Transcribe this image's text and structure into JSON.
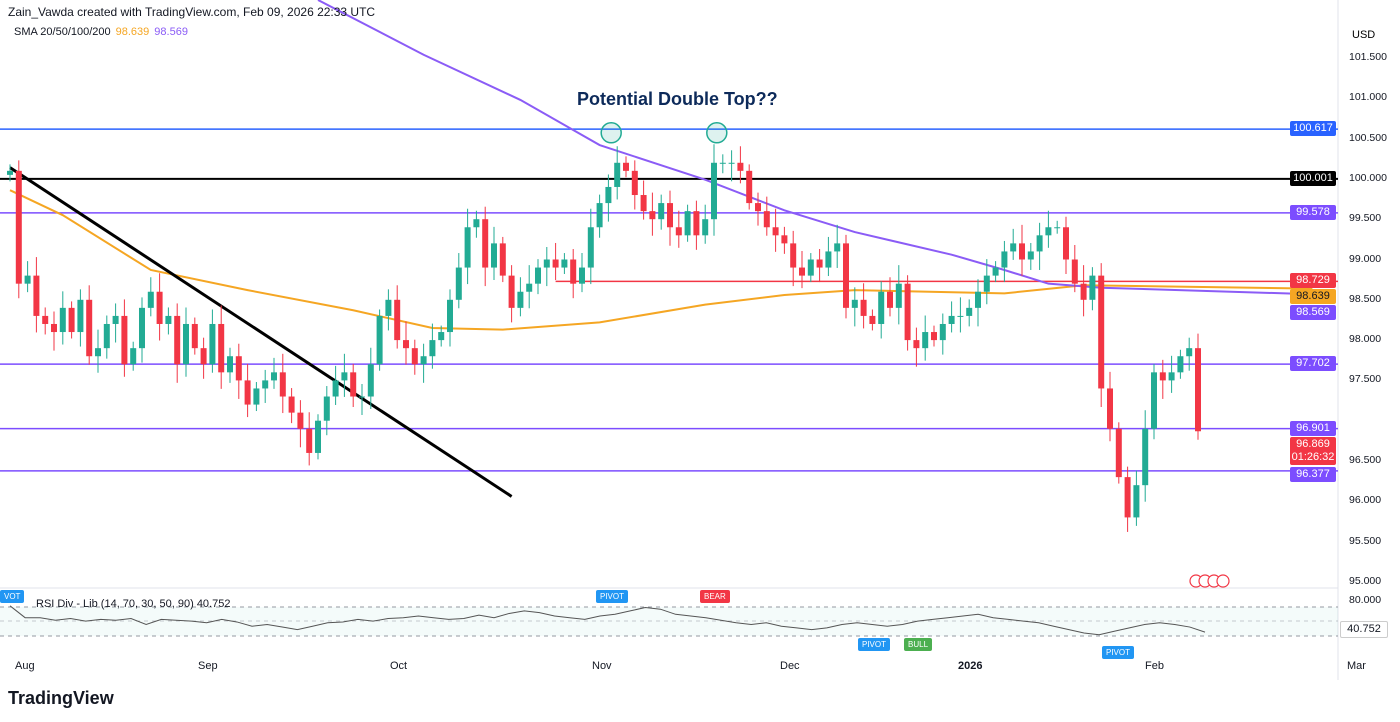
{
  "header": {
    "attribution": "Zain_Vawda created with TradingView.com, Feb 09, 2026 22:33 UTC",
    "indicator": "SMA 20/50/100/200",
    "sma_values": [
      "98.639",
      "98.569"
    ]
  },
  "annotation": "Potential Double Top??",
  "logo": "TradingView",
  "currency": "USD",
  "chart_data": {
    "type": "candlestick",
    "title": "",
    "ylim": [
      95.0,
      101.9
    ],
    "y_ticks": [
      "101.500",
      "101.000",
      "100.500",
      "100.000",
      "99.500",
      "99.000",
      "98.500",
      "98.000",
      "97.500",
      "96.500",
      "96.000",
      "95.500",
      "95.000"
    ],
    "x_ticks": [
      "Aug",
      "Sep",
      "Oct",
      "Nov",
      "Dec",
      "2026",
      "Feb",
      "Mar"
    ],
    "first_open": 100.05,
    "closes": [
      100.1,
      98.7,
      98.8,
      98.3,
      98.2,
      98.1,
      98.4,
      98.1,
      98.5,
      97.8,
      97.9,
      98.2,
      98.3,
      97.7,
      97.9,
      98.4,
      98.6,
      98.2,
      98.3,
      97.7,
      98.2,
      97.9,
      97.7,
      98.2,
      97.6,
      97.8,
      97.5,
      97.2,
      97.4,
      97.5,
      97.6,
      97.3,
      97.1,
      96.9,
      96.6,
      97.0,
      97.3,
      97.5,
      97.6,
      97.3,
      97.3,
      97.7,
      98.3,
      98.5,
      98.0,
      97.9,
      97.7,
      97.8,
      98.0,
      98.1,
      98.5,
      98.9,
      99.4,
      99.5,
      98.9,
      99.2,
      98.8,
      98.4,
      98.6,
      98.7,
      98.9,
      99.0,
      98.9,
      99.0,
      98.7,
      98.9,
      99.4,
      99.7,
      99.9,
      100.2,
      100.1,
      99.8,
      99.6,
      99.5,
      99.7,
      99.4,
      99.3,
      99.6,
      99.3,
      99.5,
      100.2,
      100.2,
      100.2,
      100.1,
      99.7,
      99.6,
      99.4,
      99.3,
      99.2,
      98.9,
      98.8,
      99.0,
      98.9,
      99.1,
      99.2,
      98.4,
      98.5,
      98.3,
      98.2,
      98.6,
      98.4,
      98.7,
      98.0,
      97.9,
      98.1,
      98.0,
      98.2,
      98.3,
      98.3,
      98.4,
      98.6,
      98.8,
      98.9,
      99.1,
      99.2,
      99.0,
      99.1,
      99.3,
      99.4,
      99.4,
      99.0,
      98.7,
      98.5,
      98.8,
      97.4,
      96.9,
      96.3,
      95.8,
      96.2,
      96.9,
      97.6,
      97.5,
      97.6,
      97.8,
      97.9,
      96.869
    ],
    "sma_100": {
      "color": "#f5a623",
      "points": [
        [
          0,
          99.86
        ],
        [
          6,
          99.55
        ],
        [
          16,
          98.87
        ],
        [
          27,
          98.62
        ],
        [
          39,
          98.37
        ],
        [
          48,
          98.15
        ],
        [
          56,
          98.13
        ],
        [
          67,
          98.22
        ],
        [
          79,
          98.44
        ],
        [
          88,
          98.56
        ],
        [
          96,
          98.62
        ],
        [
          113,
          98.58
        ],
        [
          122,
          98.68
        ],
        [
          148,
          98.639
        ]
      ]
    },
    "sma_200": {
      "color": "#8b5cf6",
      "points": [
        [
          35,
          102.22
        ],
        [
          47,
          101.54
        ],
        [
          58,
          100.98
        ],
        [
          67,
          100.42
        ],
        [
          79,
          99.99
        ],
        [
          88,
          99.61
        ],
        [
          96,
          99.34
        ],
        [
          107,
          99.06
        ],
        [
          113,
          98.87
        ],
        [
          118,
          98.7
        ],
        [
          124,
          98.65
        ],
        [
          148,
          98.569
        ]
      ]
    },
    "levels": [
      {
        "value": "100.617",
        "color": "#2962ff"
      },
      {
        "value": "100.001",
        "color": "#000000"
      },
      {
        "value": "99.578",
        "color": "#7c4dff"
      },
      {
        "value": "98.729",
        "color": "#f23645",
        "from": 62
      },
      {
        "value": "98.639",
        "color": "#f5a623",
        "label_only": true
      },
      {
        "value": "98.569",
        "color": "#7c4dff",
        "label_only": true
      },
      {
        "value": "97.702",
        "color": "#7c4dff"
      },
      {
        "value": "96.901",
        "color": "#7c4dff"
      },
      {
        "value": "96.869",
        "color": "#f23645",
        "label_only": true,
        "sub": "01:26:32"
      },
      {
        "value": "96.377",
        "color": "#7c4dff"
      }
    ],
    "trendline": [
      [
        0,
        100.14
      ],
      [
        57,
        96.06
      ]
    ],
    "double_top_markers": [
      69,
      81
    ],
    "up_color": "#22ab94",
    "down_color": "#f23645"
  },
  "rsi": {
    "label": "RSI Div - Lib (14, 70, 30, 50, 90)",
    "value": "40.752",
    "axis": "80.000",
    "values": [
      72,
      58,
      58,
      55,
      57,
      54,
      56,
      55,
      57,
      50,
      56,
      55,
      54,
      52,
      56,
      53,
      48,
      50,
      47,
      44,
      48,
      52,
      53,
      56,
      54,
      57,
      58,
      60,
      58,
      56,
      57,
      61,
      58,
      63,
      66,
      64,
      60,
      58,
      56,
      60,
      62,
      66,
      70,
      68,
      62,
      60,
      58,
      55,
      52,
      50,
      52,
      48,
      46,
      44,
      46,
      50,
      52,
      50,
      48,
      50,
      54,
      56,
      58,
      60,
      62,
      58,
      56,
      54,
      52,
      48,
      44,
      40,
      38,
      42,
      46,
      50,
      52,
      50,
      47,
      41
    ],
    "markers": [
      {
        "text": "VOT",
        "color": "#2196f3"
      },
      {
        "text": "PIVOT",
        "color": "#2196f3"
      },
      {
        "text": "BEAR",
        "color": "#f23645"
      },
      {
        "text": "PIVOT",
        "color": "#2196f3"
      },
      {
        "text": "BULL",
        "color": "#4caf50"
      },
      {
        "text": "PIVOT",
        "color": "#2196f3"
      }
    ]
  }
}
